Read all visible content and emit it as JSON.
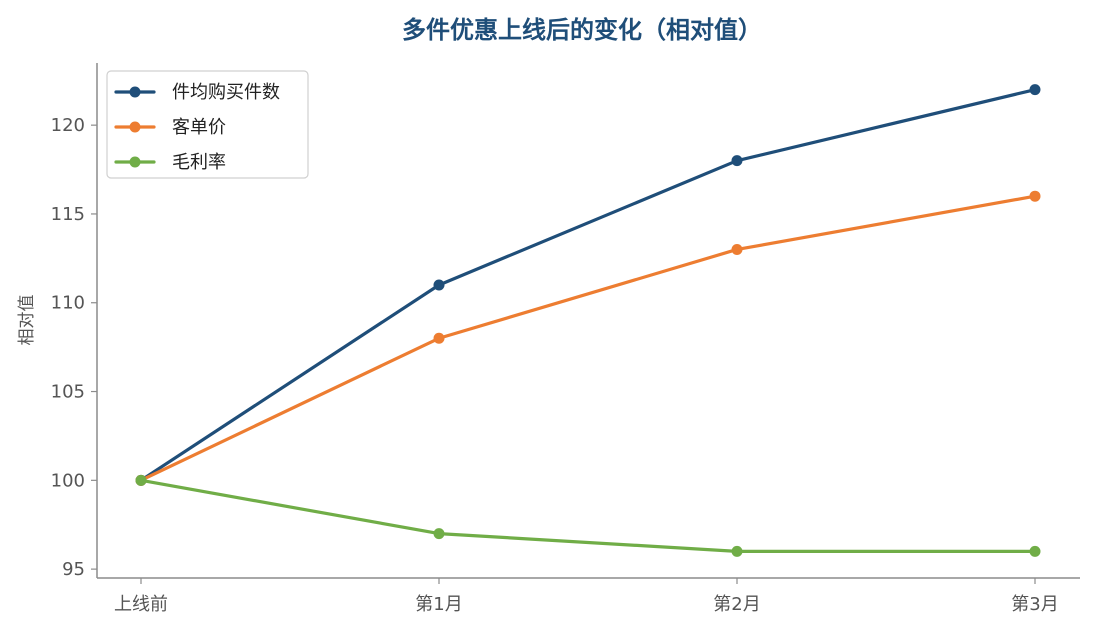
{
  "chart_data": {
    "type": "line",
    "title": "多件优惠上线后的变化（相对值）",
    "xlabel": "",
    "ylabel": "相对值",
    "categories": [
      "上线前",
      "第1月",
      "第2月",
      "第3月"
    ],
    "series": [
      {
        "name": "件均购买件数",
        "values": [
          100,
          111,
          118,
          122
        ],
        "color": "#1f4e79"
      },
      {
        "name": "客单价",
        "values": [
          100,
          108,
          113,
          116
        ],
        "color": "#ed7d31"
      },
      {
        "name": "毛利率",
        "values": [
          100,
          97,
          96,
          96
        ],
        "color": "#70ad47"
      }
    ],
    "ylim": [
      94.5,
      123.5
    ],
    "yticks": [
      95,
      100,
      105,
      110,
      115,
      120
    ],
    "grid": false,
    "legend_position": "top-left",
    "title_color": "#1f4e79"
  }
}
